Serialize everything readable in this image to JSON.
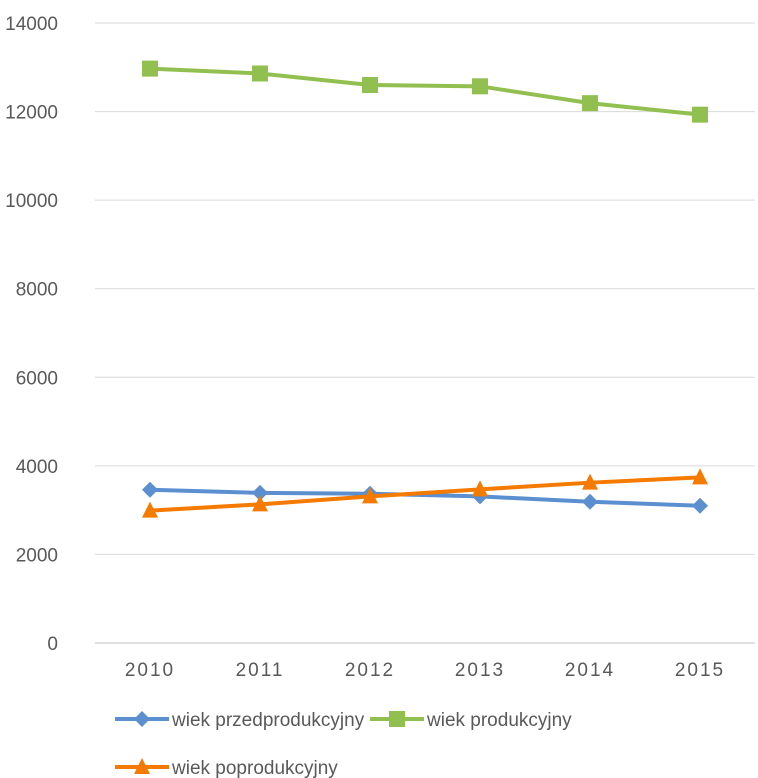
{
  "chart_data": {
    "type": "line",
    "categories": [
      "2010",
      "2011",
      "2012",
      "2013",
      "2014",
      "2015"
    ],
    "series": [
      {
        "name": "wiek przedprodukcyjny",
        "values": [
          3460,
          3390,
          3370,
          3310,
          3190,
          3100
        ],
        "color": "#5b8fd0",
        "marker": "diamond"
      },
      {
        "name": "wiek produkcyjny",
        "values": [
          12970,
          12860,
          12600,
          12570,
          12190,
          11930
        ],
        "color": "#92c050",
        "marker": "square"
      },
      {
        "name": "wiek poprodukcyjny",
        "values": [
          2990,
          3130,
          3310,
          3470,
          3620,
          3740
        ],
        "color": "#f57a00",
        "marker": "triangle"
      }
    ],
    "yticks": [
      "0",
      "2000",
      "4000",
      "6000",
      "8000",
      "10000",
      "12000",
      "14000"
    ],
    "ylim": [
      0,
      14000
    ],
    "grid": true,
    "legend_position": "bottom"
  }
}
